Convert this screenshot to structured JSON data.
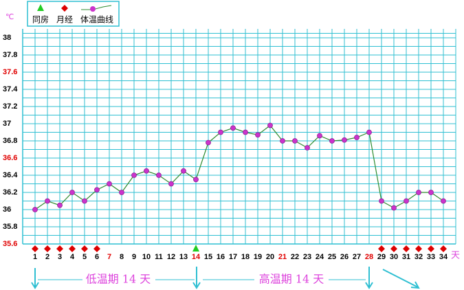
{
  "chart_data": {
    "type": "line",
    "y_unit": "℃",
    "x_unit": "天",
    "x": [
      1,
      2,
      3,
      4,
      5,
      6,
      7,
      8,
      9,
      10,
      11,
      12,
      13,
      14,
      15,
      16,
      17,
      18,
      19,
      20,
      21,
      22,
      23,
      24,
      25,
      26,
      27,
      28,
      29,
      30,
      31,
      32,
      33,
      34
    ],
    "xlim": [
      0,
      35
    ],
    "xtick_label_colors": [
      "#000",
      "#000",
      "#000",
      "#000",
      "#000",
      "#000",
      "#e00000",
      "#000",
      "#000",
      "#000",
      "#000",
      "#000",
      "#000",
      "#e00000",
      "#000",
      "#000",
      "#000",
      "#000",
      "#000",
      "#000",
      "#e00000",
      "#000",
      "#000",
      "#000",
      "#000",
      "#000",
      "#000",
      "#e00000",
      "#000",
      "#000",
      "#000",
      "#000",
      "#000",
      "#000"
    ],
    "ylim": [
      35.6,
      38.0
    ],
    "yticks": [
      35.6,
      35.8,
      36.0,
      36.2,
      36.4,
      36.6,
      36.8,
      37.0,
      37.2,
      37.4,
      37.6,
      37.8,
      38.0
    ],
    "ytick_label_colors": [
      "#e00000",
      "#000",
      "#000",
      "#000",
      "#000",
      "#e00000",
      "#000",
      "#000",
      "#000",
      "#000",
      "#e00000",
      "#000",
      "#000"
    ],
    "grid": true,
    "grid_color": "#2fbfd2",
    "series": [
      {
        "name": "体温曲线",
        "color": "#2e8b2e",
        "marker_color": "#cc33cc",
        "values": [
          36.0,
          36.1,
          36.05,
          36.2,
          36.1,
          36.23,
          36.3,
          36.2,
          36.4,
          36.45,
          36.4,
          36.3,
          36.45,
          36.35,
          36.78,
          36.9,
          36.95,
          36.9,
          36.87,
          36.98,
          36.8,
          36.8,
          36.72,
          36.86,
          36.8,
          36.81,
          36.84,
          36.9,
          36.1,
          36.02,
          36.1,
          36.2,
          36.2,
          36.1
        ]
      }
    ],
    "events": [
      {
        "name": "同房",
        "color": "#22cc22",
        "shape": "triangle",
        "days": [
          14
        ]
      },
      {
        "name": "月经",
        "color": "#dd0000",
        "shape": "diamond",
        "days": [
          1,
          2,
          3,
          4,
          5,
          6,
          29,
          30,
          31,
          32,
          33,
          34
        ]
      }
    ],
    "annotations": [
      "低温期 14 天",
      "高温期 14 天"
    ]
  }
}
